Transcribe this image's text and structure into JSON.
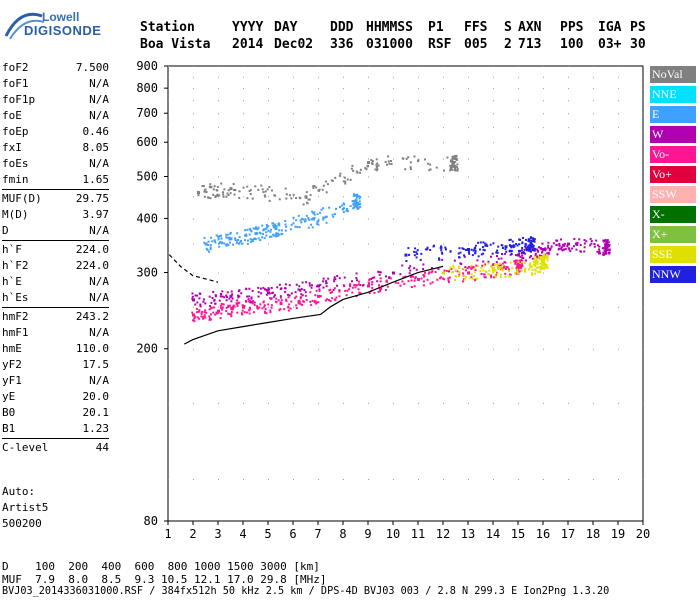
{
  "header": {
    "logo_line1": "Lowell",
    "logo_line2": "DIGISONDE",
    "labels": [
      "Station",
      "YYYY",
      "DAY",
      "DDD",
      "HHMMSS",
      "P1",
      "FFS",
      "S",
      "AXN",
      "PPS",
      "IGA",
      "PS"
    ],
    "values": [
      "Boa Vista",
      "2014",
      "Dec02",
      "336",
      "031000",
      "RSF",
      "005",
      "2",
      "713",
      "100",
      "03+",
      "30"
    ]
  },
  "params_group1": [
    {
      "k": "foF2",
      "v": "7.500"
    },
    {
      "k": "foF1",
      "v": "N/A"
    },
    {
      "k": "foF1p",
      "v": "N/A"
    },
    {
      "k": "foE",
      "v": "N/A"
    },
    {
      "k": "foEp",
      "v": "0.46"
    },
    {
      "k": "fxI",
      "v": "8.05"
    },
    {
      "k": "foEs",
      "v": "N/A"
    },
    {
      "k": "fmin",
      "v": "1.65"
    }
  ],
  "params_group2": [
    {
      "k": "MUF(D)",
      "v": "29.75"
    },
    {
      "k": "M(D)",
      "v": "3.97"
    },
    {
      "k": "D",
      "v": "N/A"
    }
  ],
  "params_group3": [
    {
      "k": "h`F",
      "v": "224.0"
    },
    {
      "k": "h`F2",
      "v": "224.0"
    },
    {
      "k": "h`E",
      "v": "N/A"
    },
    {
      "k": "h`Es",
      "v": "N/A"
    }
  ],
  "params_group4": [
    {
      "k": "hmF2",
      "v": "243.2"
    },
    {
      "k": "hmF1",
      "v": "N/A"
    },
    {
      "k": "hmE",
      "v": "110.0"
    },
    {
      "k": "yF2",
      "v": "17.5"
    },
    {
      "k": "yF1",
      "v": "N/A"
    },
    {
      "k": "yE",
      "v": "20.0"
    },
    {
      "k": "B0",
      "v": "20.1"
    },
    {
      "k": "B1",
      "v": "1.23"
    }
  ],
  "params_group5": [
    {
      "k": "C-level",
      "v": "44"
    }
  ],
  "auto": {
    "line1": "Auto:",
    "line2": "Artist5",
    "line3": "500200"
  },
  "legend": [
    {
      "label": "NoVal",
      "color": "#808080"
    },
    {
      "label": "NNE",
      "color": "#00e0ff"
    },
    {
      "label": "E",
      "color": "#40a0ff"
    },
    {
      "label": "W",
      "color": "#b000b0"
    },
    {
      "label": "Vo-",
      "color": "#ff1493"
    },
    {
      "label": "Vo+",
      "color": "#e0003c"
    },
    {
      "label": "SSW",
      "color": "#ffb0b0"
    },
    {
      "label": "X-",
      "color": "#007000"
    },
    {
      "label": "X+",
      "color": "#80c040"
    },
    {
      "label": "SSE",
      "color": "#e0e000"
    },
    {
      "label": "NNW",
      "color": "#2020e0"
    }
  ],
  "footer": {
    "d_row": "D    100  200  400  600  800 1000 1500 3000 [km]",
    "muf_row": "MUF  7.9  8.0  8.5  9.3 10.5 12.1 17.0 29.8 [MHz]",
    "info_row": "BVJ03_2014336031000.RSF / 384fx512h 50 kHz 2.5 km / DPS-4D BVJ03 003 / 2.8 N 299.3 E Ion2Png 1.3.20"
  },
  "chart_data": {
    "type": "scatter",
    "title": "",
    "xlabel": "",
    "ylabel": "",
    "xlim": [
      1,
      20
    ],
    "ylim": [
      80,
      900
    ],
    "y_scale": "log",
    "x_ticks": [
      "1",
      "2",
      "3",
      "4",
      "5",
      "6",
      "7",
      "8",
      "9",
      "10",
      "11",
      "12",
      "13",
      "14",
      "15",
      "16",
      "17",
      "18",
      "19",
      "20"
    ],
    "y_ticks": [
      "80",
      "200",
      "300",
      "400",
      "500",
      "600",
      "700",
      "800",
      "900"
    ],
    "y_tick_values": [
      80,
      200,
      300,
      400,
      500,
      600,
      700,
      800,
      900
    ],
    "series": [
      {
        "name": "NoVal",
        "points": [
          [
            2.2,
            460
          ],
          [
            3.5,
            470
          ],
          [
            6.5,
            450
          ],
          [
            9.0,
            540
          ],
          [
            12.4,
            540
          ]
        ]
      },
      {
        "name": "E",
        "points": [
          [
            2.5,
            350
          ],
          [
            3.5,
            360
          ],
          [
            4.5,
            370
          ],
          [
            5.3,
            380
          ],
          [
            6.8,
            400
          ],
          [
            8.5,
            440
          ]
        ]
      },
      {
        "name": "W",
        "points": [
          [
            2.0,
            260
          ],
          [
            3.5,
            265
          ],
          [
            5.0,
            270
          ],
          [
            7.0,
            280
          ],
          [
            10.0,
            300
          ],
          [
            15.0,
            330
          ],
          [
            16.0,
            340
          ],
          [
            17.0,
            350
          ],
          [
            18.5,
            345
          ]
        ]
      },
      {
        "name": "Vo-",
        "points": [
          [
            2.0,
            240
          ],
          [
            3.0,
            245
          ],
          [
            4.0,
            250
          ],
          [
            5.5,
            255
          ],
          [
            7.0,
            265
          ],
          [
            9.0,
            280
          ],
          [
            11.0,
            290
          ],
          [
            13.0,
            300
          ],
          [
            15.0,
            310
          ]
        ]
      },
      {
        "name": "SSE",
        "points": [
          [
            12.0,
            300
          ],
          [
            14.0,
            305
          ],
          [
            15.5,
            310
          ],
          [
            16.0,
            320
          ]
        ]
      },
      {
        "name": "NNW",
        "points": [
          [
            10.5,
            330
          ],
          [
            13.0,
            340
          ],
          [
            14.5,
            345
          ],
          [
            15.5,
            350
          ]
        ]
      }
    ],
    "profile_curve": [
      [
        1.65,
        205
      ],
      [
        2,
        210
      ],
      [
        3,
        220
      ],
      [
        4,
        225
      ],
      [
        5,
        230
      ],
      [
        6,
        235
      ],
      [
        7.1,
        240
      ],
      [
        7.5,
        250
      ],
      [
        8,
        260
      ],
      [
        9,
        270
      ],
      [
        10,
        285
      ],
      [
        11,
        300
      ],
      [
        12,
        310
      ]
    ],
    "dashed_curve": [
      [
        1.05,
        330
      ],
      [
        1.5,
        310
      ],
      [
        2.0,
        295
      ],
      [
        2.5,
        290
      ],
      [
        3.0,
        285
      ]
    ]
  }
}
